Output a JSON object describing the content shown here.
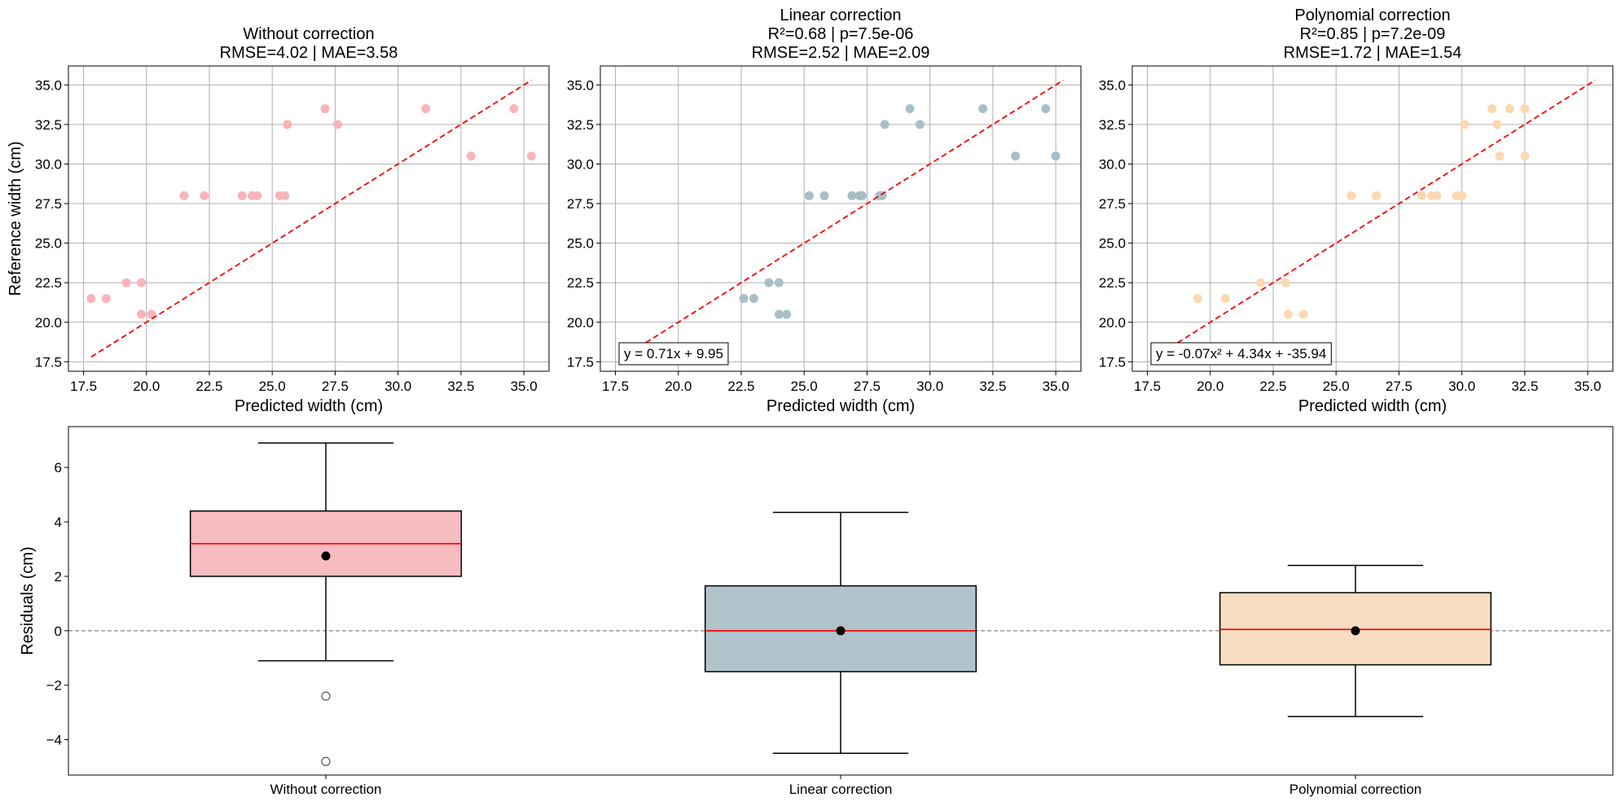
{
  "chart_data": [
    {
      "type": "scatter",
      "title": "Without correction",
      "subtitle": "RMSE=4.02 | MAE=3.58",
      "xlabel": "Predicted width (cm)",
      "ylabel": "Reference width (cm)",
      "xlim": [
        16.9,
        36.0
      ],
      "ylim": [
        16.9,
        36.2
      ],
      "xticks": [
        "17.5",
        "20.0",
        "22.5",
        "25.0",
        "27.5",
        "30.0",
        "32.5",
        "35.0"
      ],
      "yticks": [
        "17.5",
        "20.0",
        "22.5",
        "25.0",
        "27.5",
        "30.0",
        "32.5",
        "35.0"
      ],
      "grid": true,
      "point_color": "#f9b4bb",
      "reference_line": {
        "from": 17.8,
        "to": 35.3,
        "color": "#ff0000",
        "style": "dashed"
      },
      "equation": "",
      "points": [
        [
          17.8,
          21.5
        ],
        [
          18.4,
          21.5
        ],
        [
          19.2,
          22.5
        ],
        [
          19.8,
          22.5
        ],
        [
          19.8,
          20.5
        ],
        [
          20.2,
          20.5
        ],
        [
          21.5,
          28.0
        ],
        [
          22.3,
          28.0
        ],
        [
          23.8,
          28.0
        ],
        [
          24.2,
          28.0
        ],
        [
          24.4,
          28.0
        ],
        [
          25.3,
          28.0
        ],
        [
          25.5,
          28.0
        ],
        [
          25.6,
          32.5
        ],
        [
          27.1,
          33.5
        ],
        [
          27.6,
          32.5
        ],
        [
          31.1,
          33.5
        ],
        [
          32.9,
          30.5
        ],
        [
          34.6,
          33.5
        ],
        [
          35.3,
          30.5
        ]
      ]
    },
    {
      "type": "scatter",
      "title": "Linear correction",
      "subtitle": "R²=0.68 | p=7.5e-06",
      "subtitle2": "RMSE=2.52 | MAE=2.09",
      "xlabel": "Predicted width (cm)",
      "ylabel": "",
      "xlim": [
        16.9,
        36.0
      ],
      "ylim": [
        16.9,
        36.2
      ],
      "xticks": [
        "17.5",
        "20.0",
        "22.5",
        "25.0",
        "27.5",
        "30.0",
        "32.5",
        "35.0"
      ],
      "yticks": [
        "17.5",
        "20.0",
        "22.5",
        "25.0",
        "27.5",
        "30.0",
        "32.5",
        "35.0"
      ],
      "grid": true,
      "point_color": "#a9bfc7",
      "reference_line": {
        "from": 17.8,
        "to": 35.3,
        "color": "#ff0000",
        "style": "dashed"
      },
      "equation": "y = 0.71x + 9.95",
      "points": [
        [
          22.6,
          21.5
        ],
        [
          23.0,
          21.5
        ],
        [
          23.6,
          22.5
        ],
        [
          24.0,
          22.5
        ],
        [
          24.0,
          20.5
        ],
        [
          24.3,
          20.5
        ],
        [
          25.2,
          28.0
        ],
        [
          25.8,
          28.0
        ],
        [
          26.9,
          28.0
        ],
        [
          27.2,
          28.0
        ],
        [
          27.3,
          28.0
        ],
        [
          28.0,
          28.0
        ],
        [
          28.1,
          28.0
        ],
        [
          28.2,
          32.5
        ],
        [
          29.2,
          33.5
        ],
        [
          29.6,
          32.5
        ],
        [
          32.1,
          33.5
        ],
        [
          33.4,
          30.5
        ],
        [
          34.6,
          33.5
        ],
        [
          35.0,
          30.5
        ]
      ]
    },
    {
      "type": "scatter",
      "title": "Polynomial correction",
      "subtitle": "R²=0.85 | p=7.2e-09",
      "subtitle2": "RMSE=1.72 | MAE=1.54",
      "xlabel": "Predicted width (cm)",
      "ylabel": "",
      "xlim": [
        16.9,
        36.0
      ],
      "ylim": [
        16.9,
        36.2
      ],
      "xticks": [
        "17.5",
        "20.0",
        "22.5",
        "25.0",
        "27.5",
        "30.0",
        "32.5",
        "35.0"
      ],
      "yticks": [
        "17.5",
        "20.0",
        "22.5",
        "25.0",
        "27.5",
        "30.0",
        "32.5",
        "35.0"
      ],
      "grid": true,
      "point_color": "#fdd8b0",
      "reference_line": {
        "from": 17.8,
        "to": 35.3,
        "color": "#ff0000",
        "style": "dashed"
      },
      "equation": "y = -0.07x² + 4.34x + -35.94",
      "points": [
        [
          19.5,
          21.5
        ],
        [
          20.6,
          21.5
        ],
        [
          22.0,
          22.5
        ],
        [
          23.0,
          22.5
        ],
        [
          23.1,
          20.5
        ],
        [
          23.7,
          20.5
        ],
        [
          25.6,
          28.0
        ],
        [
          26.6,
          28.0
        ],
        [
          28.4,
          28.0
        ],
        [
          28.8,
          28.0
        ],
        [
          29.0,
          28.0
        ],
        [
          29.8,
          28.0
        ],
        [
          30.0,
          28.0
        ],
        [
          30.1,
          32.5
        ],
        [
          31.2,
          33.5
        ],
        [
          31.4,
          32.5
        ],
        [
          31.9,
          33.5
        ],
        [
          31.5,
          30.5
        ],
        [
          32.5,
          33.5
        ],
        [
          32.5,
          30.5
        ]
      ]
    },
    {
      "type": "box",
      "title": "",
      "xlabel": "",
      "ylabel": "Residuals (cm)",
      "ylim": [
        -5.3,
        7.5
      ],
      "yticks": [
        "−4",
        "−2",
        "0",
        "2",
        "4",
        "6"
      ],
      "grid": false,
      "zero_line": {
        "value": 0,
        "color": "#888888",
        "style": "dashed"
      },
      "categories": [
        "Without correction",
        "Linear correction",
        "Polynomial correction"
      ],
      "boxes": [
        {
          "name": "Without correction",
          "color": "#f7bcc2",
          "whisker_low": -1.1,
          "q1": 2.0,
          "median": 3.2,
          "q3": 4.4,
          "whisker_high": 6.9,
          "mean": 2.75,
          "outliers": [
            -2.4,
            -4.8
          ]
        },
        {
          "name": "Linear correction",
          "color": "#b1c4cb",
          "whisker_low": -4.5,
          "q1": -1.5,
          "median": 0.0,
          "q3": 1.65,
          "whisker_high": 4.35,
          "mean": 0.0,
          "outliers": []
        },
        {
          "name": "Polynomial correction",
          "color": "#f6dcc1",
          "whisker_low": -3.15,
          "q1": -1.25,
          "median": 0.05,
          "q3": 1.4,
          "whisker_high": 2.4,
          "mean": 0.0,
          "outliers": []
        }
      ]
    }
  ]
}
